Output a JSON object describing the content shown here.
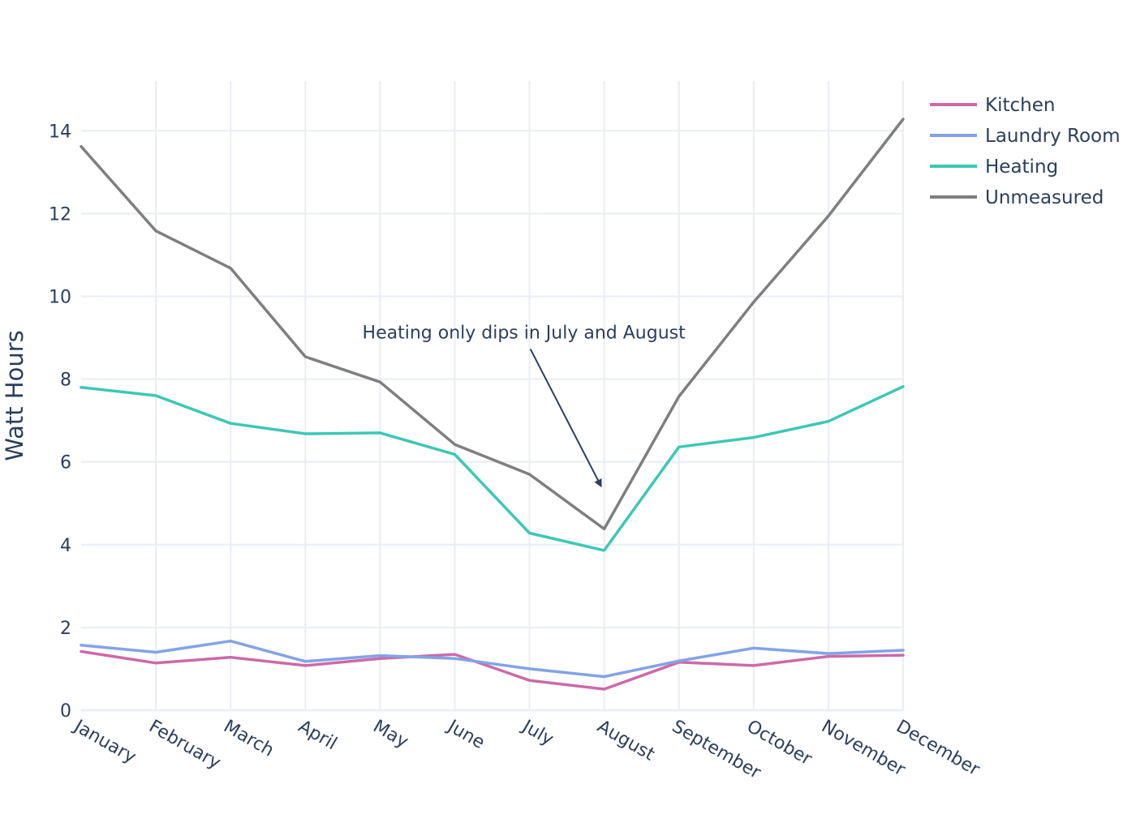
{
  "chart_data": {
    "type": "line",
    "title": "",
    "xlabel": "",
    "ylabel": "Watt Hours",
    "categories": [
      "January",
      "February",
      "March",
      "April",
      "May",
      "June",
      "July",
      "August",
      "September",
      "October",
      "November",
      "December"
    ],
    "ylim": [
      0,
      15.2
    ],
    "yticks": [
      0,
      2,
      4,
      6,
      8,
      10,
      12,
      14
    ],
    "grid": true,
    "legend_position": "top-right",
    "series": [
      {
        "name": "Kitchen",
        "color": "#cc6aa8",
        "values": [
          1.42,
          1.14,
          1.28,
          1.08,
          1.25,
          1.35,
          0.72,
          0.51,
          1.16,
          1.08,
          1.3,
          1.33
        ]
      },
      {
        "name": "Laundry Room",
        "color": "#83a3e6",
        "values": [
          1.57,
          1.4,
          1.67,
          1.18,
          1.32,
          1.25,
          1.0,
          0.81,
          1.19,
          1.5,
          1.37,
          1.45
        ]
      },
      {
        "name": "Heating",
        "color": "#3cc8b4",
        "values": [
          7.8,
          7.6,
          6.93,
          6.68,
          6.7,
          6.18,
          4.28,
          3.86,
          6.36,
          6.59,
          6.98,
          7.82
        ]
      },
      {
        "name": "Unmeasured",
        "color": "#7f7f7f",
        "values": [
          13.62,
          11.58,
          10.68,
          8.54,
          7.93,
          6.42,
          5.7,
          4.38,
          7.58,
          9.86,
          11.94,
          14.28
        ]
      }
    ],
    "annotations": [
      {
        "text": "Heating only dips in July and August",
        "x": "August",
        "y": 5.3
      }
    ]
  }
}
